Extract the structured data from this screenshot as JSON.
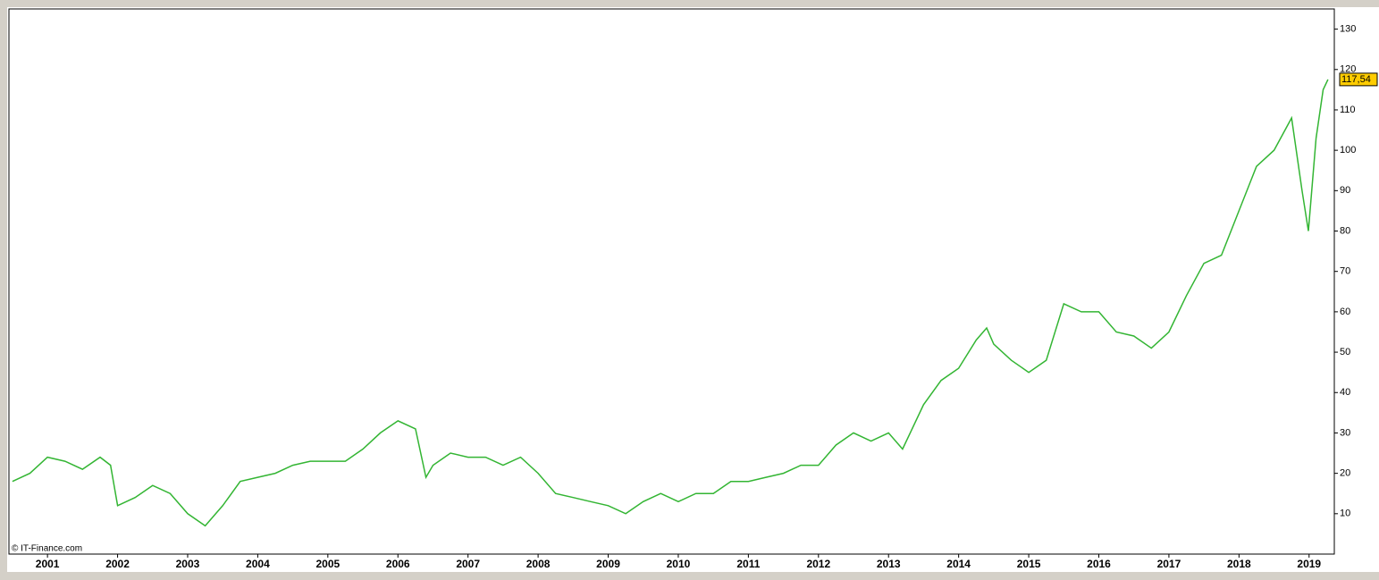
{
  "chart_data": {
    "type": "line",
    "watermark": "© IT-Finance.com",
    "color": "#33b533",
    "x": [
      2000.5,
      2000.75,
      2001.0,
      2001.25,
      2001.5,
      2001.75,
      2001.9,
      2002.0,
      2002.25,
      2002.5,
      2002.75,
      2003.0,
      2003.25,
      2003.5,
      2003.75,
      2004.0,
      2004.25,
      2004.5,
      2004.75,
      2005.0,
      2005.25,
      2005.5,
      2005.75,
      2006.0,
      2006.25,
      2006.4,
      2006.5,
      2006.75,
      2007.0,
      2007.25,
      2007.5,
      2007.75,
      2008.0,
      2008.25,
      2008.5,
      2008.75,
      2009.0,
      2009.25,
      2009.5,
      2009.75,
      2010.0,
      2010.25,
      2010.5,
      2010.75,
      2011.0,
      2011.25,
      2011.5,
      2011.75,
      2012.0,
      2012.25,
      2012.5,
      2012.75,
      2013.0,
      2013.2,
      2013.5,
      2013.75,
      2014.0,
      2014.25,
      2014.4,
      2014.5,
      2014.75,
      2015.0,
      2015.25,
      2015.5,
      2015.75,
      2016.0,
      2016.25,
      2016.5,
      2016.75,
      2017.0,
      2017.25,
      2017.5,
      2017.75,
      2018.0,
      2018.25,
      2018.5,
      2018.75,
      2018.9,
      2018.99,
      2019.1,
      2019.2,
      2019.27
    ],
    "values": [
      18,
      20,
      24,
      23,
      21,
      24,
      22,
      12,
      14,
      17,
      15,
      10,
      7,
      12,
      18,
      19,
      20,
      22,
      23,
      23,
      23,
      26,
      30,
      33,
      31,
      19,
      22,
      25,
      24,
      24,
      22,
      24,
      20,
      15,
      14,
      13,
      12,
      10,
      13,
      15,
      13,
      15,
      15,
      18,
      18,
      19,
      20,
      22,
      22,
      27,
      30,
      28,
      30,
      26,
      37,
      43,
      46,
      53,
      56,
      52,
      48,
      45,
      48,
      62,
      60,
      60,
      55,
      54,
      51,
      55,
      64,
      72,
      74,
      85,
      96,
      100,
      108,
      90,
      80,
      103,
      115,
      117.54
    ],
    "last_label": {
      "value": 117.54,
      "label": "117,54"
    },
    "xlim": [
      2000.45,
      2019.36
    ],
    "xticks": [
      2001,
      2002,
      2003,
      2004,
      2005,
      2006,
      2007,
      2008,
      2009,
      2010,
      2011,
      2012,
      2013,
      2014,
      2015,
      2016,
      2017,
      2018,
      2019
    ],
    "ylim": [
      0,
      135
    ],
    "yticks": [
      10,
      20,
      30,
      40,
      50,
      60,
      70,
      80,
      90,
      100,
      110,
      120,
      130
    ]
  }
}
